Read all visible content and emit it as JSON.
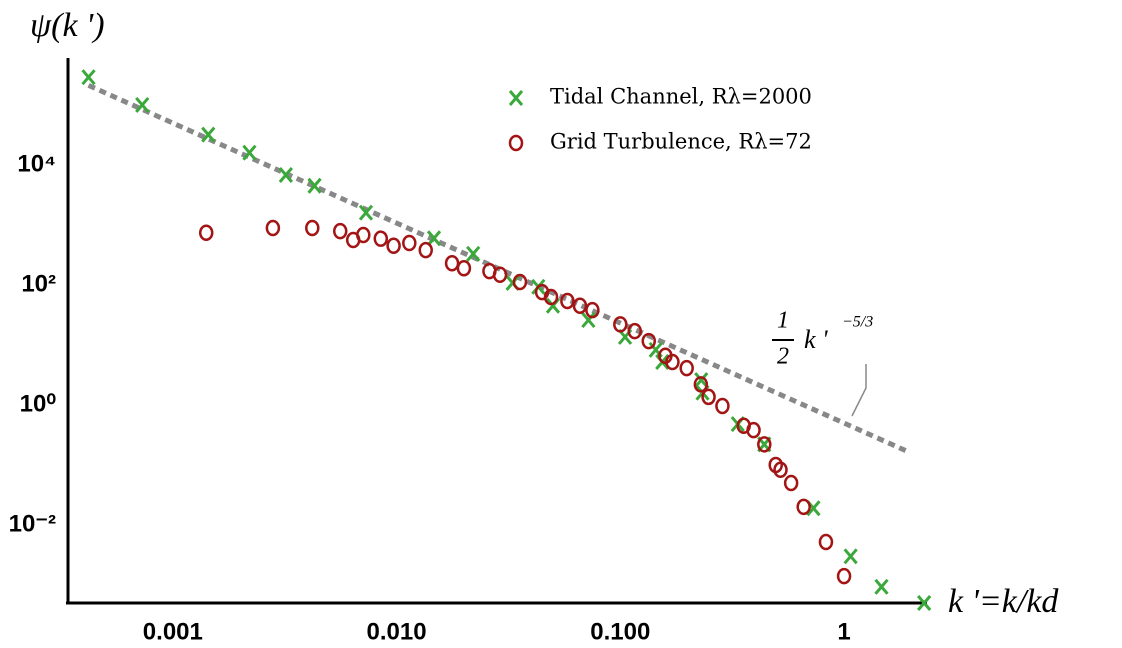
{
  "chart_data": {
    "type": "scatter",
    "y_label": "ψ(k ')",
    "x_label": "k '=k/kd",
    "x_scale": "log",
    "y_scale": "log",
    "xlim": [
      0.00034,
      2.3
    ],
    "ylim": [
      0.0005,
      500000
    ],
    "xticks": [
      0.001,
      {
        "value": 0.01,
        "label": "0.010"
      },
      {
        "value": 0.1,
        "label": "0.100"
      },
      1
    ],
    "yticks": [
      {
        "value": 0.01,
        "label": "10⁻²"
      },
      {
        "value": 1,
        "label": "10⁰"
      },
      {
        "value": 100,
        "label": "10²"
      },
      {
        "value": 10000,
        "label": "10⁴"
      }
    ],
    "legend": "top-right",
    "series": [
      {
        "name": "Tidal Channel, Rλ=2000",
        "color": "#3aa83a",
        "marker": "x",
        "x": [
          0.00042,
          0.00073,
          0.00144,
          0.0022,
          0.0032,
          0.0043,
          0.0073,
          0.0147,
          0.022,
          0.033,
          0.043,
          0.05,
          0.072,
          0.105,
          0.144,
          0.154,
          0.23,
          0.233,
          0.335,
          0.44,
          0.73,
          1.07,
          1.47,
          2.28
        ],
        "values": [
          290000,
          100000,
          32000,
          16000,
          6800,
          4500,
          1600,
          600,
          330,
          108,
          93,
          45,
          26,
          13.6,
          8.3,
          5.2,
          2.6,
          1.6,
          0.48,
          0.22,
          0.019,
          0.003,
          0.00093,
          0.0005
        ]
      },
      {
        "name": "Grid Turbulence, Rλ=72",
        "color": "#a31515",
        "marker": "o",
        "x": [
          0.00141,
          0.0028,
          0.0042,
          0.0056,
          0.0064,
          0.0071,
          0.0085,
          0.0097,
          0.0114,
          0.0135,
          0.0177,
          0.02,
          0.026,
          0.029,
          0.0356,
          0.0447,
          0.049,
          0.058,
          0.066,
          0.075,
          0.1,
          0.116,
          0.134,
          0.159,
          0.171,
          0.198,
          0.229,
          0.248,
          0.286,
          0.356,
          0.394,
          0.44,
          0.495,
          0.52,
          0.58,
          0.66,
          0.83,
          1.0
        ],
        "values": [
          740,
          890,
          890,
          790,
          560,
          680,
          590,
          450,
          500,
          380,
          230,
          190,
          170,
          148,
          112,
          76,
          63,
          54,
          45,
          38,
          22,
          17,
          11.6,
          6.6,
          5.2,
          4.1,
          2.2,
          1.36,
          0.96,
          0.45,
          0.38,
          0.22,
          0.1,
          0.083,
          0.05,
          0.02,
          0.0052,
          0.0014
        ]
      }
    ],
    "reference_line": {
      "color": "#888888",
      "x": [
        0.00042,
        1.9
      ],
      "values": [
        212000,
        0.171
      ]
    },
    "annotation": {
      "numerator": "1",
      "denominator": "2",
      "base": "k '",
      "exponent": "−5/3"
    }
  }
}
